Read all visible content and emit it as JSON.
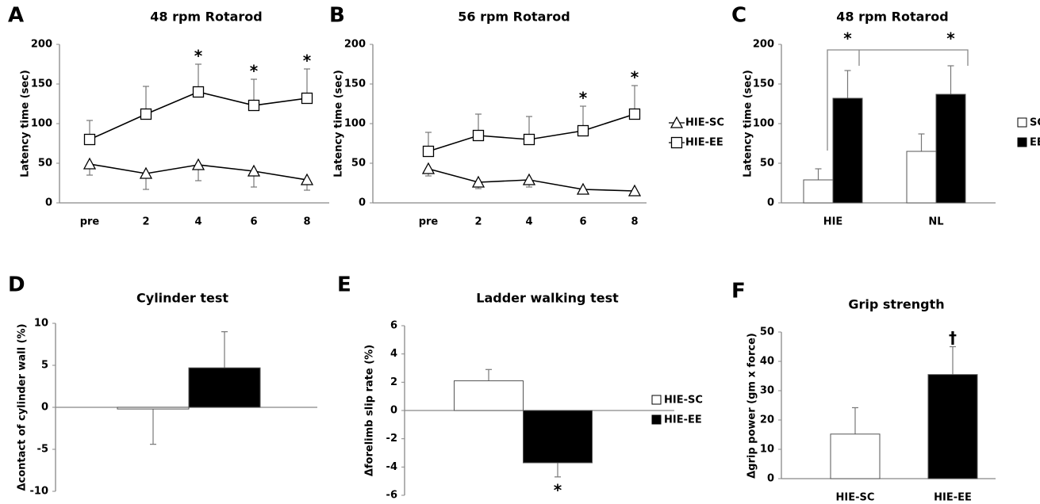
{
  "chart_data": [
    {
      "panel": "A",
      "type": "line",
      "title": "48 rpm Rotarod",
      "ylabel": "Latency time (sec)",
      "categories": [
        "pre",
        "2",
        "4",
        "6",
        "8"
      ],
      "ylim": [
        0,
        200
      ],
      "yticks": [
        0,
        50,
        100,
        150,
        200
      ],
      "legend": "right",
      "series": [
        {
          "name": "HIE-SC",
          "marker": "triangle",
          "color": "#000000",
          "values": [
            49,
            37,
            48,
            40,
            29
          ],
          "errors": [
            14,
            20,
            20,
            20,
            13
          ]
        },
        {
          "name": "HIE-EE",
          "marker": "square",
          "color": "#000000",
          "values": [
            80,
            112,
            140,
            123,
            132
          ],
          "errors": [
            24,
            35,
            35,
            33,
            37
          ],
          "significance": [
            null,
            null,
            "*",
            "*",
            "*"
          ]
        }
      ]
    },
    {
      "panel": "B",
      "type": "line",
      "title": "56 rpm Rotarod",
      "ylabel": "Latency time (sec)",
      "categories": [
        "pre",
        "2",
        "4",
        "6",
        "8"
      ],
      "ylim": [
        0,
        200
      ],
      "yticks": [
        0,
        50,
        100,
        150,
        200
      ],
      "series": [
        {
          "marker": "triangle",
          "color": "#000000",
          "values": [
            43,
            26,
            29,
            17,
            15
          ],
          "errors": [
            9,
            8,
            9,
            3,
            3
          ]
        },
        {
          "marker": "square",
          "color": "#000000",
          "values": [
            65,
            85,
            80,
            91,
            112
          ],
          "errors": [
            24,
            27,
            29,
            31,
            36
          ],
          "significance": [
            null,
            null,
            null,
            "*",
            "*"
          ]
        }
      ]
    },
    {
      "panel": "C",
      "type": "bar",
      "title": "48 rpm Rotarod",
      "ylabel": "Latency time (sec)",
      "categories": [
        "HIE",
        "NL"
      ],
      "ylim": [
        0,
        200
      ],
      "yticks": [
        0,
        50,
        100,
        150,
        200
      ],
      "legend": "right",
      "series": [
        {
          "name": "SC",
          "color": "#ffffff",
          "values": [
            29,
            65
          ],
          "errors": [
            14,
            22
          ]
        },
        {
          "name": "EE",
          "color": "#000000",
          "values": [
            132,
            137
          ],
          "errors": [
            35,
            36
          ],
          "significance": [
            "*",
            "*"
          ]
        }
      ]
    },
    {
      "panel": "D",
      "type": "bar",
      "title": "Cylinder test",
      "ylabel": "Δcontact of cylinder wall (%)",
      "ylim": [
        -10,
        10
      ],
      "yticks": [
        -10,
        -5,
        0,
        5,
        10
      ],
      "series": [
        {
          "color": "#ffffff",
          "values": [
            -0.2
          ],
          "errors": [
            4.2
          ]
        },
        {
          "color": "#000000",
          "values": [
            4.7
          ],
          "errors": [
            4.3
          ]
        }
      ]
    },
    {
      "panel": "E",
      "type": "bar",
      "title": "Ladder walking test",
      "ylabel": "Δforelimb slip rate (%)",
      "ylim": [
        -6,
        6
      ],
      "yticks": [
        -6,
        -4,
        -2,
        0,
        2,
        4,
        6
      ],
      "legend": "right",
      "series": [
        {
          "name": "HIE-SC",
          "color": "#ffffff",
          "values": [
            2.1
          ],
          "errors": [
            0.8
          ]
        },
        {
          "name": "HIE-EE",
          "color": "#000000",
          "values": [
            -3.7
          ],
          "errors": [
            1.0
          ],
          "significance": [
            "*"
          ]
        }
      ]
    },
    {
      "panel": "F",
      "type": "bar",
      "title": "Grip strength",
      "ylabel": "Δgrip power (gm x force)",
      "categories": [
        "HIE-SC",
        "HIE-EE"
      ],
      "ylim": [
        0,
        50
      ],
      "yticks": [
        0,
        10,
        20,
        30,
        40,
        50
      ],
      "values": [
        15.2,
        35.5
      ],
      "errors": [
        9,
        9.5
      ],
      "colors": [
        "#ffffff",
        "#000000"
      ],
      "significance": [
        null,
        "†"
      ]
    }
  ]
}
